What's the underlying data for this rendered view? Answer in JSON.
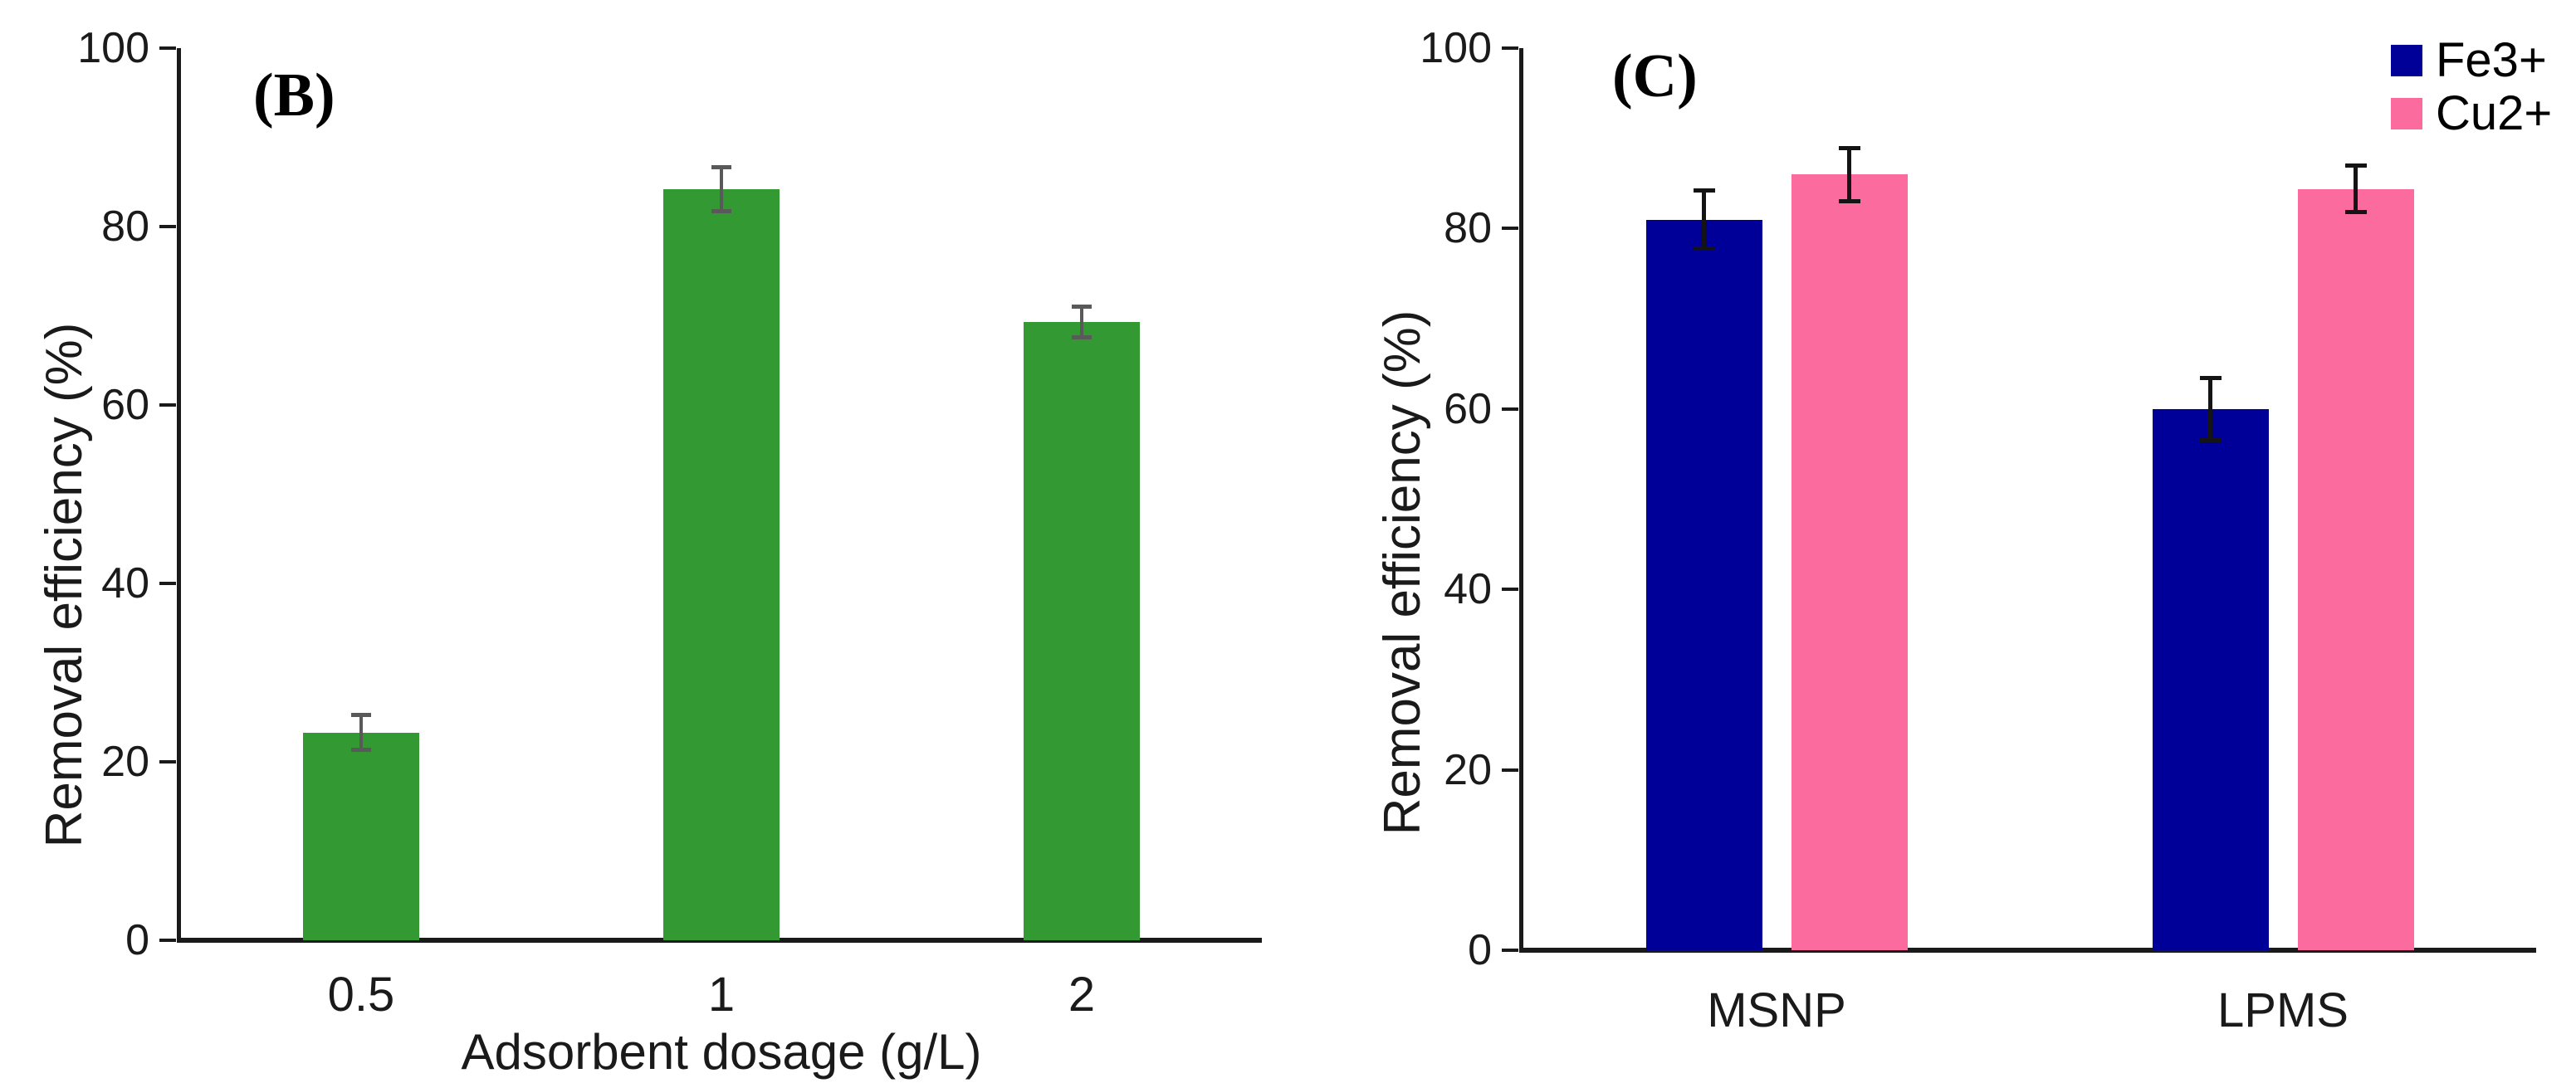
{
  "figure": {
    "background": "#ffffff",
    "axis_color": "#1a1a1a",
    "text_color": "#1a1a1a"
  },
  "chart_data": [
    {
      "type": "bar",
      "panel_label": "(B)",
      "categories": [
        "0.5",
        "1",
        "2"
      ],
      "values": [
        23.3,
        84.2,
        69.3
      ],
      "errors": [
        2.0,
        2.5,
        1.8
      ],
      "bar_color": "#339933",
      "error_color": "#595959",
      "xlabel": "Adsorbent dosage (g/L)",
      "ylabel": "Removal efficiency (%)",
      "ylim": [
        0,
        100
      ],
      "yticks": [
        0,
        20,
        40,
        60,
        80,
        100
      ],
      "grid": false
    },
    {
      "type": "bar",
      "panel_label": "(C)",
      "categories": [
        "MSNP",
        "LPMS"
      ],
      "series": [
        {
          "name": "Fe3+",
          "color": "#000099",
          "values": [
            81.0,
            60.0
          ],
          "errors": [
            3.3,
            3.5
          ]
        },
        {
          "name": "Cu2+",
          "color": "#FC6B9D",
          "values": [
            86.0,
            84.4
          ],
          "errors": [
            3.0,
            2.6
          ]
        }
      ],
      "error_color": "#141414",
      "xlabel": "",
      "ylabel": "Removal efficiency (%)",
      "ylim": [
        0,
        100
      ],
      "yticks": [
        0,
        20,
        40,
        60,
        80,
        100
      ],
      "grid": false,
      "legend_position": "top-right"
    }
  ]
}
